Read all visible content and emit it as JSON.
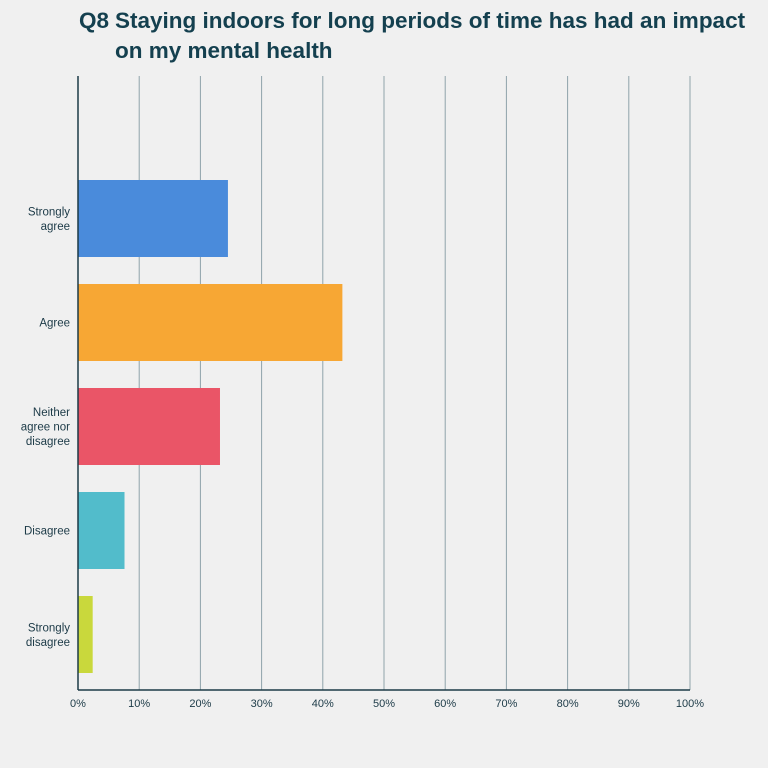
{
  "chart_data": {
    "type": "bar",
    "orientation": "horizontal",
    "question_number": "Q8",
    "title": "Staying indoors for long periods of time has had an impact on my mental health",
    "categories": [
      [
        "Strongly",
        "agree"
      ],
      [
        "Agree"
      ],
      [
        "Neither",
        "agree nor",
        "disagree"
      ],
      [
        "Disagree"
      ],
      [
        "Strongly",
        "disagree"
      ]
    ],
    "values": [
      24.5,
      43.2,
      23.2,
      7.6,
      2.4
    ],
    "unit": "%",
    "xlim": [
      0,
      100
    ],
    "xticks": [
      "0%",
      "10%",
      "20%",
      "30%",
      "40%",
      "50%",
      "60%",
      "70%",
      "80%",
      "90%",
      "100%"
    ],
    "grid": "vertical",
    "colors": [
      "#4a8bdb",
      "#f7a734",
      "#ea5567",
      "#52bccb",
      "#c9d83c"
    ]
  }
}
